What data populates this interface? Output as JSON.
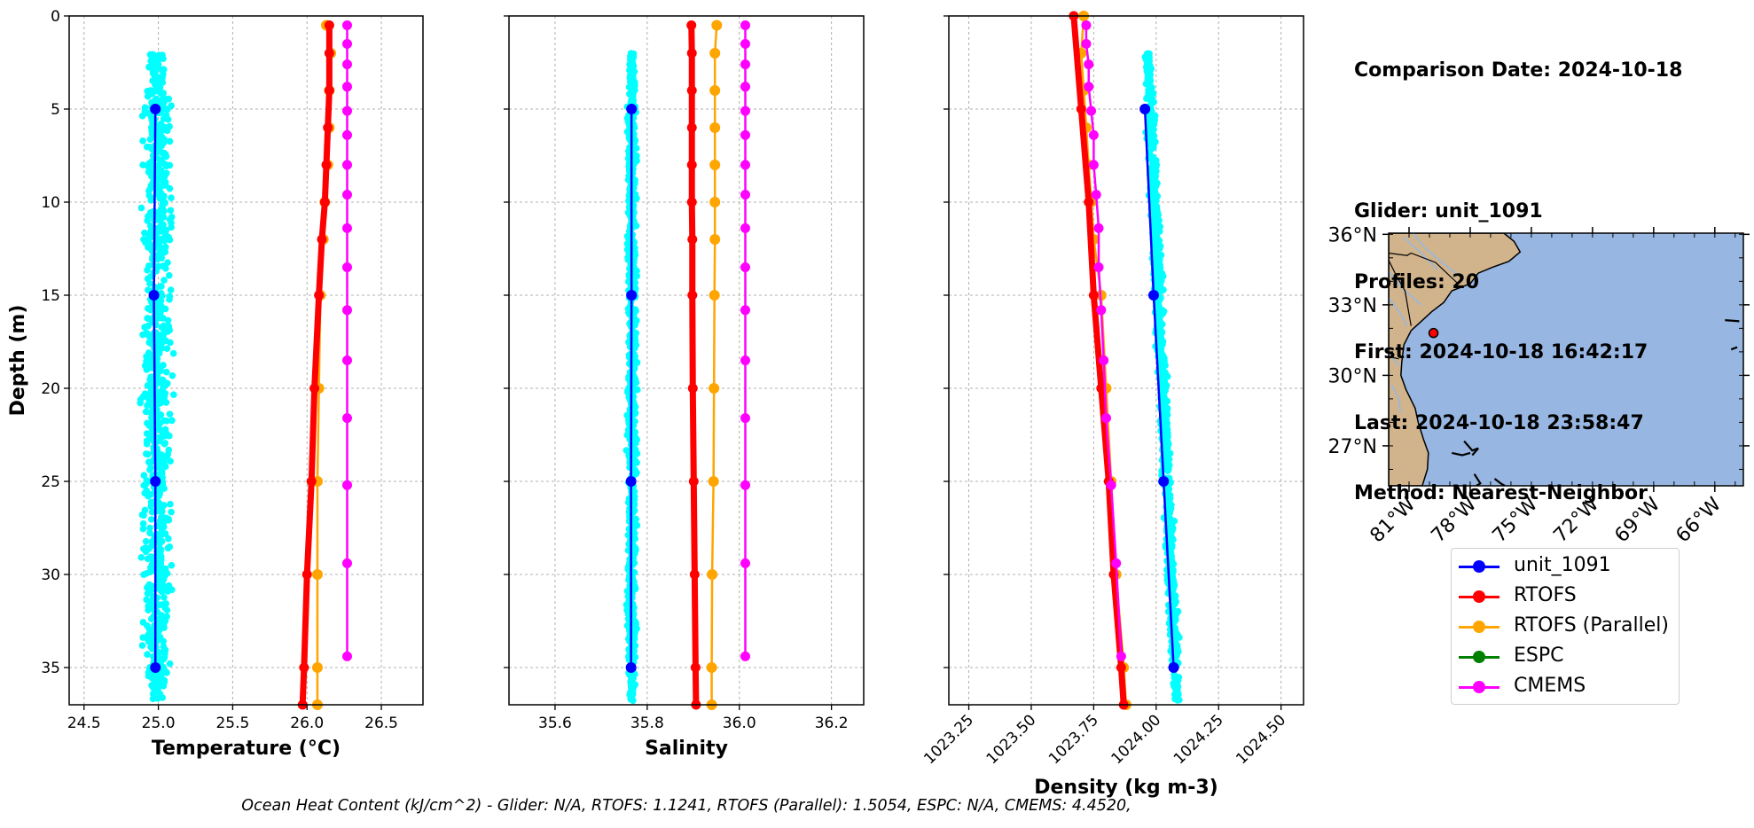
{
  "info": {
    "comparison_date": "Comparison Date: 2024-10-18",
    "glider": "Glider: unit_1091",
    "profiles": "Profiles: 20",
    "first": "First: 2024-10-18 16:42:17",
    "last": "Last: 2024-10-18 23:58:47",
    "method": "Method: Nearest-Neighbor"
  },
  "footer": "Ocean Heat Content (kJ/cm^2) - Glider: N/A,  RTOFS: 1.1241,  RTOFS (Parallel): 1.5054,  ESPC: N/A,  CMEMS: 4.4520,",
  "colors": {
    "glider_raw": "#00ffff",
    "glider": "#0000ff",
    "rtofs": "#ff0000",
    "rtofs_parallel": "#ffa500",
    "espc": "#008000",
    "cmems": "#ff00ff",
    "grid": "#b0b0b0",
    "ocean": "#97b6e1",
    "land": "#d2b48c",
    "river": "#9bb8d9"
  },
  "legend": [
    {
      "name": "unit_1091",
      "color": "#0000ff"
    },
    {
      "name": "RTOFS",
      "color": "#ff0000"
    },
    {
      "name": "RTOFS (Parallel)",
      "color": "#ffa500"
    },
    {
      "name": "ESPC",
      "color": "#008000"
    },
    {
      "name": "CMEMS",
      "color": "#ff00ff"
    }
  ],
  "map": {
    "lat_ticks": [
      {
        "value": 36,
        "label": "36°N"
      },
      {
        "value": 33,
        "label": "33°N"
      },
      {
        "value": 30,
        "label": "30°N"
      },
      {
        "value": 27,
        "label": "27°N"
      }
    ],
    "lon_ticks": [
      {
        "value": -81,
        "label": "81°W"
      },
      {
        "value": -78,
        "label": "78°W"
      },
      {
        "value": -75,
        "label": "75°W"
      },
      {
        "value": -72,
        "label": "72°W"
      },
      {
        "value": -69,
        "label": "69°W"
      },
      {
        "value": -66,
        "label": "66°W"
      }
    ],
    "lon_range": [
      -82,
      -64.6
    ],
    "lat_range": [
      25.3,
      36.05
    ],
    "glider_location": {
      "lon": -79.8,
      "lat": 31.8
    },
    "land_polygons": [
      [
        [
          -82,
          36.05
        ],
        [
          -76.35,
          36.05
        ],
        [
          -75.85,
          35.7
        ],
        [
          -75.55,
          35.25
        ],
        [
          -76.1,
          34.85
        ],
        [
          -76.9,
          34.6
        ],
        [
          -77.6,
          34.35
        ],
        [
          -78,
          33.9
        ],
        [
          -78.9,
          33.6
        ],
        [
          -79.3,
          33.1
        ],
        [
          -79.9,
          32.7
        ],
        [
          -80.4,
          32.3
        ],
        [
          -80.9,
          31.9
        ],
        [
          -81.25,
          31.3
        ],
        [
          -81.35,
          30.6
        ],
        [
          -81.4,
          30
        ],
        [
          -81.15,
          29.4
        ],
        [
          -80.7,
          28.6
        ],
        [
          -80.55,
          28
        ],
        [
          -80.3,
          27.3
        ],
        [
          -80.05,
          26.7
        ],
        [
          -80.1,
          26
        ],
        [
          -80.35,
          25.3
        ],
        [
          -82,
          25.3
        ]
      ]
    ],
    "rivers": [
      [
        [
          -81.3,
          35.9
        ],
        [
          -80.4,
          35.2
        ],
        [
          -79.6,
          34.5
        ]
      ],
      [
        [
          -80.8,
          36.05
        ],
        [
          -80.2,
          35.4
        ],
        [
          -79.1,
          34.6
        ],
        [
          -78.3,
          34.1
        ]
      ],
      [
        [
          -82,
          34.4
        ],
        [
          -81.2,
          33.6
        ],
        [
          -80.4,
          33
        ]
      ],
      [
        [
          -82,
          33.3
        ],
        [
          -81.4,
          32.6
        ],
        [
          -81.1,
          32.1
        ]
      ],
      [
        [
          -82,
          31
        ],
        [
          -81.5,
          30.4
        ]
      ],
      [
        [
          -81.85,
          29.6
        ],
        [
          -81.5,
          29
        ],
        [
          -81.4,
          28.4
        ]
      ]
    ],
    "borders": [
      [
        [
          -82,
          35.2
        ],
        [
          -81.1,
          35.1
        ],
        [
          -80.9,
          35.2
        ],
        [
          -79.7,
          34.8
        ],
        [
          -78.6,
          33.9
        ]
      ],
      [
        [
          -82,
          34.9
        ],
        [
          -81.6,
          34.2
        ],
        [
          -81.2,
          33.6
        ],
        [
          -80.9,
          32.1
        ]
      ],
      [
        [
          -82,
          30.8
        ],
        [
          -81.5,
          30.7
        ]
      ]
    ],
    "islands": [
      [
        [
          -78.3,
          27.2
        ],
        [
          -77.9,
          26.8
        ],
        [
          -77.6,
          26.9
        ],
        [
          -77.9,
          26.6
        ]
      ],
      [
        [
          -78.9,
          26.7
        ],
        [
          -78.4,
          26.6
        ],
        [
          -78.0,
          26.7
        ]
      ],
      [
        [
          -77.8,
          25.8
        ],
        [
          -77.5,
          25.4
        ],
        [
          -77.7,
          25.3
        ]
      ],
      [
        [
          -76.8,
          25.6
        ],
        [
          -76.5,
          25.4
        ],
        [
          -76.3,
          25.3
        ]
      ],
      [
        [
          -65.5,
          32.35
        ],
        [
          -64.8,
          32.3
        ]
      ],
      [
        [
          -65.2,
          31.1
        ],
        [
          -64.9,
          31.2
        ]
      ]
    ]
  },
  "chart_data": [
    {
      "type": "line",
      "xlabel": "Temperature (°C)",
      "ylabel": "Depth (m)",
      "xlim": [
        24.4,
        26.78
      ],
      "ylim": [
        37,
        0
      ],
      "xticks": [
        24.5,
        25.0,
        25.5,
        26.0,
        26.5
      ],
      "xtick_labels": [
        "24.5",
        "25.0",
        "25.5",
        "26.0",
        "26.5"
      ],
      "yticks": [
        0,
        5,
        10,
        15,
        20,
        25,
        30,
        35
      ],
      "ytick_labels": [
        "0",
        "5",
        "10",
        "15",
        "20",
        "25",
        "30",
        "35"
      ],
      "grid": true,
      "raw_cloud": {
        "name": "unit_1091 raw",
        "center": 24.99,
        "spread": 0.13,
        "depth_range": [
          2,
          36.8
        ]
      },
      "series": [
        {
          "name": "unit_1091",
          "depth": [
            5,
            15,
            25,
            35
          ],
          "values": [
            24.98,
            24.97,
            24.98,
            24.98
          ]
        },
        {
          "name": "RTOFS",
          "depth": [
            0.5,
            2,
            4,
            6,
            8,
            10,
            12,
            15,
            20,
            25,
            30,
            35,
            37
          ],
          "values": [
            26.15,
            26.15,
            26.15,
            26.14,
            26.13,
            26.12,
            26.1,
            26.08,
            26.05,
            26.03,
            26.0,
            25.98,
            25.97
          ]
        },
        {
          "name": "RTOFS (Parallel)",
          "depth": [
            0.5,
            2,
            4,
            6,
            8,
            10,
            12,
            15,
            20,
            25,
            30,
            35,
            37
          ],
          "values": [
            26.13,
            26.16,
            26.15,
            26.15,
            26.14,
            26.12,
            26.11,
            26.09,
            26.08,
            26.07,
            26.07,
            26.07,
            26.07
          ]
        },
        {
          "name": "CMEMS",
          "depth": [
            0.5,
            1.5,
            2.6,
            3.8,
            5.1,
            6.4,
            8.0,
            9.6,
            11.4,
            13.5,
            15.8,
            18.5,
            21.6,
            25.2,
            29.4,
            34.4
          ],
          "values": [
            26.27,
            26.27,
            26.27,
            26.27,
            26.27,
            26.27,
            26.27,
            26.27,
            26.27,
            26.27,
            26.27,
            26.27,
            26.27,
            26.27,
            26.27,
            26.27
          ]
        }
      ]
    },
    {
      "type": "line",
      "xlabel": "Salinity",
      "ylabel": "",
      "xlim": [
        35.5,
        36.27
      ],
      "ylim": [
        37,
        0
      ],
      "xticks": [
        35.6,
        35.8,
        36.0,
        36.2
      ],
      "xtick_labels": [
        "35.6",
        "35.8",
        "36.0",
        "36.2"
      ],
      "yticks": [
        0,
        5,
        10,
        15,
        20,
        25,
        30,
        35
      ],
      "ytick_labels": [],
      "grid": true,
      "raw_cloud": {
        "name": "unit_1091 raw",
        "center": 35.767,
        "spread": 0.014,
        "depth_range": [
          2,
          36.8
        ]
      },
      "series": [
        {
          "name": "unit_1091",
          "depth": [
            5,
            15,
            25,
            35
          ],
          "values": [
            35.766,
            35.766,
            35.765,
            35.765
          ]
        },
        {
          "name": "RTOFS",
          "depth": [
            0.5,
            2,
            4,
            6,
            8,
            10,
            12,
            15,
            20,
            25,
            30,
            35,
            37
          ],
          "values": [
            35.896,
            35.897,
            35.897,
            35.897,
            35.897,
            35.897,
            35.898,
            35.898,
            35.899,
            35.901,
            35.903,
            35.905,
            35.906
          ]
        },
        {
          "name": "RTOFS (Parallel)",
          "depth": [
            0.5,
            2,
            4,
            6,
            8,
            10,
            12,
            15,
            20,
            25,
            30,
            35,
            37
          ],
          "values": [
            35.951,
            35.947,
            35.947,
            35.947,
            35.947,
            35.947,
            35.947,
            35.946,
            35.945,
            35.944,
            35.941,
            35.94,
            35.94
          ]
        },
        {
          "name": "CMEMS",
          "depth": [
            0.5,
            1.5,
            2.6,
            3.8,
            5.1,
            6.4,
            8.0,
            9.6,
            11.4,
            13.5,
            15.8,
            18.5,
            21.6,
            25.2,
            29.4,
            34.4
          ],
          "values": [
            36.013,
            36.013,
            36.013,
            36.013,
            36.013,
            36.013,
            36.013,
            36.013,
            36.013,
            36.013,
            36.013,
            36.013,
            36.013,
            36.013,
            36.013,
            36.013
          ]
        }
      ]
    },
    {
      "type": "line",
      "xlabel": "Density (kg m-3)",
      "ylabel": "",
      "xlim": [
        1023.17,
        1024.59
      ],
      "ylim": [
        37,
        0
      ],
      "xticks": [
        1023.25,
        1023.5,
        1023.75,
        1024.0,
        1024.25,
        1024.5
      ],
      "xtick_labels": [
        "1023.25",
        "1023.50",
        "1023.75",
        "1024.00",
        "1024.25",
        "1024.50"
      ],
      "yticks": [
        0,
        5,
        10,
        15,
        20,
        25,
        30,
        35
      ],
      "ytick_labels": [],
      "grid": true,
      "raw_cloud": {
        "name": "unit_1091 raw",
        "center_top": 1023.965,
        "center_bottom": 1024.083,
        "spread": 0.026,
        "depth_range": [
          2,
          36.8
        ]
      },
      "series": [
        {
          "name": "unit_1091",
          "depth": [
            5,
            15,
            25,
            35
          ],
          "values": [
            1023.955,
            1023.99,
            1024.03,
            1024.07
          ]
        },
        {
          "name": "RTOFS",
          "depth": [
            0,
            5,
            10,
            15,
            20,
            25,
            30,
            35,
            37
          ],
          "values": [
            1023.67,
            1023.7,
            1023.73,
            1023.75,
            1023.78,
            1023.81,
            1023.83,
            1023.86,
            1023.87
          ]
        },
        {
          "name": "RTOFS (Parallel)",
          "depth": [
            0,
            2,
            4,
            6,
            8,
            10,
            12,
            15,
            20,
            25,
            30,
            35,
            37
          ],
          "values": [
            1023.71,
            1023.7,
            1023.71,
            1023.72,
            1023.73,
            1023.74,
            1023.75,
            1023.78,
            1023.8,
            1023.82,
            1023.84,
            1023.87,
            1023.88
          ]
        },
        {
          "name": "CMEMS",
          "depth": [
            0.5,
            1.5,
            2.6,
            3.8,
            5.1,
            6.4,
            8.0,
            9.6,
            11.4,
            13.5,
            15.8,
            18.5,
            21.6,
            25.2,
            29.4,
            34.4
          ],
          "values": [
            1023.72,
            1023.72,
            1023.73,
            1023.73,
            1023.74,
            1023.75,
            1023.75,
            1023.76,
            1023.77,
            1023.77,
            1023.78,
            1023.79,
            1023.8,
            1023.82,
            1023.84,
            1023.86
          ]
        }
      ]
    }
  ]
}
